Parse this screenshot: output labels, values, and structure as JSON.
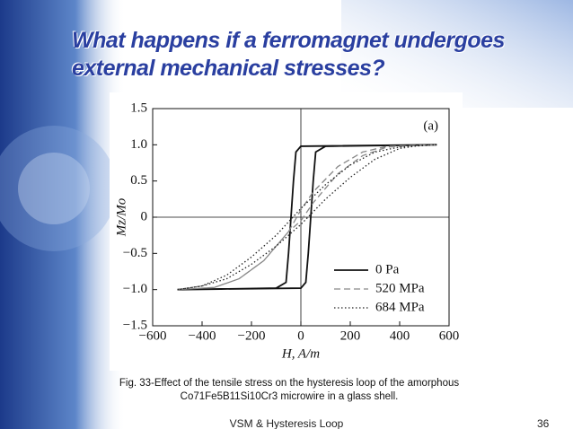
{
  "slide": {
    "title": "What happens if a ferromagnet undergoes external mechanical stresses?",
    "caption": "Fig. 33-Effect of the tensile stress on the hysteresis loop of the amorphous Co71Fe5B11Si10Cr3 microwire in a glass shell.",
    "footer": "VSM & Hysteresis Loop",
    "page_number": "36"
  },
  "chart_data": {
    "type": "line",
    "x_label": "H, A/m",
    "y_label": "Mz/Mo",
    "annotation": "(a)",
    "xlim": [
      -600,
      600
    ],
    "ylim": [
      -1.5,
      1.5
    ],
    "xticks": [
      {
        "value": -600,
        "label": "−600"
      },
      {
        "value": -400,
        "label": "−400"
      },
      {
        "value": -200,
        "label": "−200"
      },
      0,
      200,
      400,
      600
    ],
    "yticks": [
      {
        "value": -1.5,
        "label": "−1.5"
      },
      {
        "value": -1,
        "label": "−1.0"
      },
      {
        "value": -0.5,
        "label": "−0.5"
      },
      0,
      0.5,
      {
        "value": 1,
        "label": "1.0"
      },
      1.5
    ],
    "legend": "lower right",
    "series": [
      {
        "name": "0 Pa",
        "color": "#111111",
        "style": "solid",
        "x": [
          -500,
          0,
          20,
          30,
          40,
          50,
          60,
          100,
          550,
          0,
          -20,
          -30,
          -40,
          -50,
          -60,
          -100,
          -500
        ],
        "values": [
          -1,
          -0.98,
          -0.9,
          -0.5,
          0,
          0.5,
          0.9,
          0.98,
          1,
          0.98,
          0.9,
          0.5,
          0,
          -0.5,
          -0.9,
          -0.98,
          -1
        ]
      },
      {
        "name": "520 MPa",
        "color": "#888888",
        "style": "dashed",
        "x": [
          -500,
          -350,
          -250,
          -150,
          -50,
          0,
          50,
          150,
          250,
          350,
          550,
          350,
          250,
          150,
          50,
          0,
          -50,
          -150,
          -250,
          -350,
          -500
        ],
        "values": [
          -1,
          -0.97,
          -0.85,
          -0.6,
          -0.2,
          -0.05,
          0.2,
          0.6,
          0.85,
          0.97,
          1,
          0.98,
          0.9,
          0.7,
          0.35,
          0.1,
          -0.2,
          -0.6,
          -0.85,
          -0.97,
          -1
        ]
      },
      {
        "name": "684 MPa",
        "color": "#222222",
        "style": "dotted",
        "x": [
          -500,
          -400,
          -300,
          -200,
          -100,
          0,
          100,
          200,
          300,
          400,
          500,
          550,
          400,
          300,
          200,
          100,
          0,
          -100,
          -200,
          -300,
          -400,
          -500
        ],
        "values": [
          -1,
          -0.95,
          -0.85,
          -0.65,
          -0.4,
          -0.1,
          0.25,
          0.55,
          0.8,
          0.95,
          1,
          1,
          0.97,
          0.9,
          0.72,
          0.45,
          0.12,
          -0.25,
          -0.55,
          -0.8,
          -0.95,
          -1
        ]
      }
    ]
  }
}
